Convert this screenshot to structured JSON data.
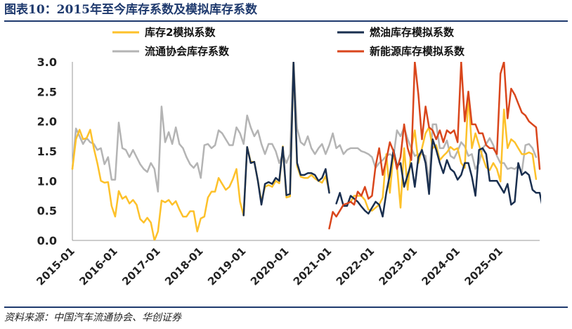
{
  "figure": {
    "title": "图表10：2015年至今库存系数及模拟库存系数",
    "source": "资料来源：中国汽车流通协会、华创证券"
  },
  "chart_data": {
    "type": "line",
    "x_start": "2015-01",
    "x_end": "2025-12",
    "x_tick_labels": [
      "2015-01",
      "2016-01",
      "2017-01",
      "2018-01",
      "2019-01",
      "2020-01",
      "2021-01",
      "2022-01",
      "2023-01",
      "2024-01",
      "2025-01"
    ],
    "ylim": [
      0,
      3
    ],
    "y_tick_labels": [
      "0.0",
      "0.5",
      "1.0",
      "1.5",
      "2.0",
      "2.5",
      "3.0"
    ],
    "grid": false,
    "legend_placement": "top",
    "series": [
      {
        "name": "库存2模拟系数",
        "color": "#FDC12A",
        "width": 2.5,
        "start": "2015-01",
        "values": [
          1.2,
          1.7,
          1.86,
          1.7,
          1.72,
          1.86,
          1.55,
          1.3,
          1.0,
          0.97,
          0.98,
          0.58,
          0.4,
          0.83,
          0.7,
          0.74,
          0.62,
          0.68,
          0.6,
          0.36,
          0.3,
          0.38,
          0.3,
          0.0,
          0.15,
          0.67,
          0.64,
          0.68,
          0.6,
          0.66,
          0.52,
          0.4,
          0.4,
          0.49,
          0.49,
          0.15,
          0.37,
          0.4,
          0.72,
          0.82,
          0.82,
          1.05,
          0.95,
          0.85,
          0.9,
          1.03,
          1.2,
          0.65,
          0.42,
          1.57,
          1.32,
          1.32,
          1.0,
          0.65,
          0.9,
          0.93,
          0.9,
          1.0,
          0.96,
          1.58,
          0.72,
          0.74,
          3.0,
          1.25,
          1.07,
          1.05,
          1.05,
          1.1,
          1.04,
          1.0,
          0.97,
          1.08,
          0.83,
          null,
          null,
          null,
          null,
          null,
          0.65,
          0.75,
          0.75,
          0.75,
          0.68,
          0.52,
          0.5,
          0.55,
          0.6,
          0.72,
          1.45,
          0.8,
          1.45,
          1.25,
          0.55,
          1.55,
          0.85,
          1.55,
          1.85,
          1.3,
          1.55,
          1.8,
          1.9,
          1.55,
          1.6,
          1.35,
          1.42,
          1.48,
          1.57,
          1.52,
          1.55,
          1.3,
          1.22,
          2.45,
          1.55,
          1.8,
          1.6,
          1.4,
          1.23,
          1.18,
          1.3,
          1.2,
          0.99,
          2.2,
          1.55,
          1.7,
          1.65,
          1.55,
          1.45,
          1.45,
          1.48,
          1.45,
          1.03
        ]
      },
      {
        "name": "燃油库存模拟系数",
        "color": "#1A2F4F",
        "width": 2.5,
        "start": "2019-01",
        "values": [
          0.42,
          1.57,
          1.3,
          1.32,
          1.0,
          0.6,
          0.95,
          0.98,
          0.95,
          1.05,
          1.0,
          1.57,
          0.76,
          0.78,
          3.0,
          1.3,
          1.1,
          1.1,
          1.13,
          1.13,
          1.1,
          1.0,
          1.05,
          1.2,
          0.8,
          null,
          0.62,
          0.8,
          0.58,
          0.58,
          0.75,
          0.7,
          0.65,
          0.57,
          0.5,
          0.45,
          0.55,
          0.65,
          0.6,
          0.4,
          0.8,
          1.1,
          1.52,
          1.25,
          1.3,
          0.9,
          1.1,
          1.3,
          0.9,
          1.4,
          1.52,
          1.3,
          0.78,
          1.7,
          1.52,
          1.3,
          1.13,
          1.35,
          1.2,
          1.15,
          1.02,
          1.1,
          1.3,
          1.3,
          1.07,
          0.75,
          1.52,
          1.55,
          1.45,
          1.0,
          1.0,
          1.0,
          0.9,
          0.8,
          0.95,
          0.6,
          0.65,
          1.3,
          1.1,
          1.15,
          1.1,
          0.85,
          0.8,
          0.8,
          0.5,
          0.6,
          0.7,
          0.75,
          0.8,
          0.65
        ]
      },
      {
        "name": "流通协会库存系数",
        "color": "#B4B4B4",
        "width": 2.5,
        "start": "2015-01",
        "values": [
          1.2,
          1.88,
          1.75,
          1.62,
          1.72,
          1.65,
          1.62,
          1.52,
          1.55,
          1.28,
          1.4,
          1.02,
          1.02,
          1.98,
          1.55,
          1.52,
          1.4,
          1.52,
          1.4,
          1.28,
          1.2,
          1.15,
          1.3,
          1.2,
          0.82,
          2.25,
          1.65,
          1.82,
          1.62,
          1.9,
          1.62,
          1.55,
          1.4,
          1.28,
          1.22,
          1.3,
          1.05,
          1.6,
          1.62,
          1.55,
          1.6,
          1.85,
          1.8,
          1.7,
          1.6,
          1.6,
          1.9,
          1.8,
          1.62,
          2.1,
          1.9,
          1.75,
          1.85,
          1.62,
          1.45,
          1.62,
          1.62,
          1.5,
          1.3,
          1.45,
          1.3,
          1.45,
          3.0,
          1.88,
          1.65,
          1.6,
          1.75,
          1.55,
          1.45,
          1.55,
          1.62,
          1.45,
          1.6,
          1.8,
          1.55,
          1.6,
          1.45,
          1.52,
          1.55,
          1.55,
          1.55,
          1.5,
          1.48,
          1.45,
          1.4,
          1.22,
          1.3,
          1.35,
          1.42,
          1.45,
          1.4,
          1.85,
          1.75,
          1.9,
          1.7,
          1.55,
          1.42,
          1.45,
          1.45,
          1.42,
          0.95,
          1.95,
          1.95,
          1.55,
          1.55,
          1.68,
          1.42,
          1.38,
          1.5,
          1.65,
          1.58,
          1.42,
          1.45,
          1.2,
          1.3,
          1.55,
          1.62,
          1.72,
          1.6,
          1.42,
          1.3,
          1.3,
          1.2,
          1.22,
          1.2,
          1.25,
          1.15,
          1.6,
          1.62,
          1.55,
          1.4
        ]
      },
      {
        "name": "新能源库存模拟系数",
        "color": "#D9461C",
        "width": 2.5,
        "start": "2021-01",
        "values": [
          0.2,
          0.48,
          0.4,
          0.5,
          0.6,
          0.62,
          0.65,
          0.6,
          0.82,
          0.75,
          0.9,
          0.7,
          0.75,
          1.25,
          1.55,
          1.1,
          1.35,
          1.65,
          1.5,
          1.2,
          1.4,
          1.95,
          1.55,
          1.35,
          3.0,
          2.45,
          1.7,
          2.25,
          1.9,
          1.85,
          1.7,
          1.85,
          1.65,
          1.85,
          1.8,
          1.85,
          1.65,
          3.0,
          2.0,
          2.5,
          1.95,
          1.95,
          1.8,
          1.8,
          1.6,
          1.55,
          1.55,
          1.45,
          2.8,
          3.0,
          2.05,
          2.55,
          2.45,
          2.3,
          2.15,
          2.1,
          2.0,
          1.95,
          1.9,
          1.2
        ]
      }
    ]
  }
}
